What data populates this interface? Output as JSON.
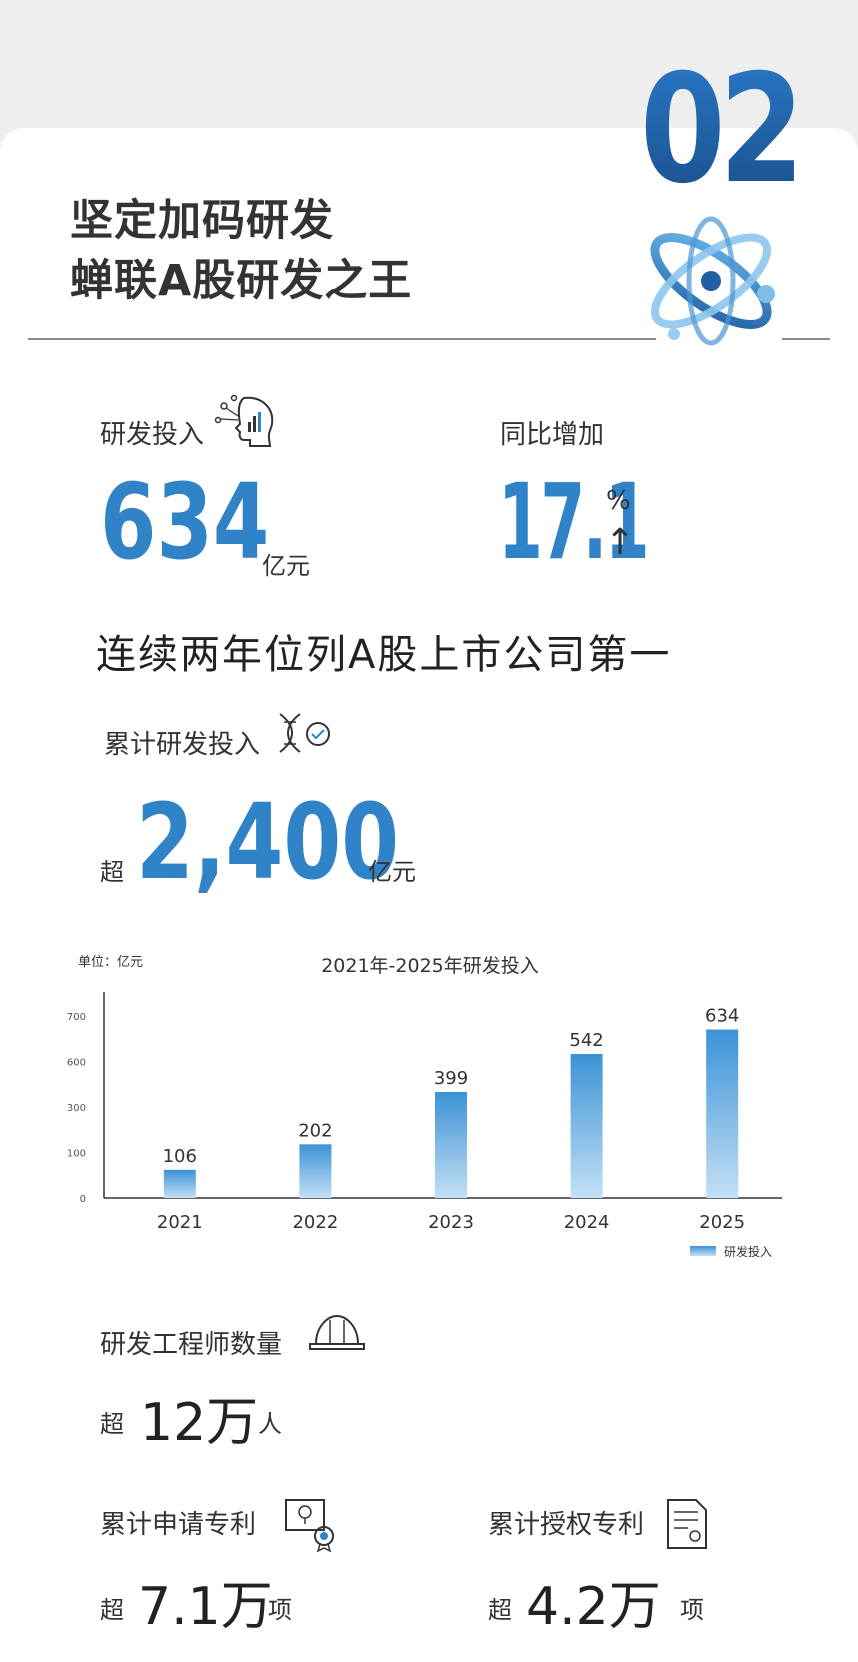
{
  "section_number": "02",
  "title_line1": "坚定加码研发",
  "title_line2": "蝉联A股研发之王",
  "rd_investment": {
    "label": "研发投入",
    "value": "634",
    "unit": "亿元"
  },
  "yoy": {
    "label": "同比增加",
    "value": "17.1",
    "unit": "%",
    "arrow": "↑"
  },
  "headline": "连续两年位列A股上市公司第一",
  "cumulative": {
    "label": "累计研发投入",
    "prefix": "超",
    "value": "2,400",
    "unit": "亿元"
  },
  "chart_data": {
    "type": "bar",
    "title": "2021年-2025年研发投入",
    "unit_label": "单位：亿元",
    "categories": [
      "2021",
      "2022",
      "2023",
      "2024",
      "2025"
    ],
    "series": [
      {
        "name": "研发投入",
        "values": [
          106,
          202,
          399,
          542,
          634
        ]
      }
    ],
    "y_ticks": [
      "0",
      "100",
      "300",
      "600",
      "700"
    ],
    "legend_position": "bottom-right",
    "bar_color": "#4e9fdc"
  },
  "engineers": {
    "label": "研发工程师数量",
    "prefix": "超",
    "value": "12万",
    "unit": "人"
  },
  "patents_applied": {
    "label": "累计申请专利",
    "prefix": "超",
    "value": "7.1万",
    "unit": "项"
  },
  "patents_granted": {
    "label": "累计授权专利",
    "prefix": "超",
    "value": "4.2万",
    "unit": "项"
  },
  "colors": {
    "accent": "#2f83c6",
    "text": "#333333",
    "background": "#eeeeee"
  }
}
